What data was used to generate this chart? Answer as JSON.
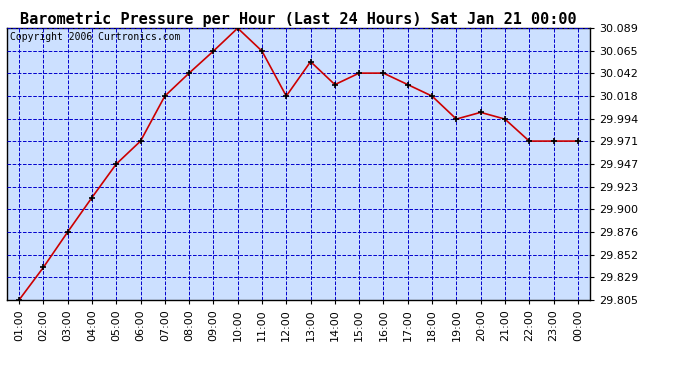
{
  "title": "Barometric Pressure per Hour (Last 24 Hours) Sat Jan 21 00:00",
  "copyright": "Copyright 2006 Curtronics.com",
  "hours": [
    "01:00",
    "02:00",
    "03:00",
    "04:00",
    "05:00",
    "06:00",
    "07:00",
    "08:00",
    "09:00",
    "10:00",
    "11:00",
    "12:00",
    "13:00",
    "14:00",
    "15:00",
    "16:00",
    "17:00",
    "18:00",
    "19:00",
    "20:00",
    "21:00",
    "22:00",
    "23:00",
    "00:00"
  ],
  "values": [
    29.805,
    29.839,
    29.876,
    29.912,
    29.947,
    29.971,
    30.018,
    30.042,
    30.065,
    30.089,
    30.065,
    30.018,
    30.054,
    30.03,
    30.042,
    30.042,
    30.03,
    30.018,
    29.994,
    30.001,
    29.994,
    29.971,
    29.971,
    29.971
  ],
  "ylim_min": 29.805,
  "ylim_max": 30.089,
  "yticks": [
    29.805,
    29.829,
    29.852,
    29.876,
    29.9,
    29.923,
    29.947,
    29.971,
    29.994,
    30.018,
    30.042,
    30.065,
    30.089
  ],
  "line_color": "#cc0000",
  "marker_color": "#000000",
  "bg_color": "#ffffff",
  "plot_bg_color": "#cce0ff",
  "grid_color": "#0000cc",
  "title_color": "#000000",
  "border_color": "#000000",
  "title_fontsize": 11,
  "tick_fontsize": 8,
  "copyright_fontsize": 7
}
